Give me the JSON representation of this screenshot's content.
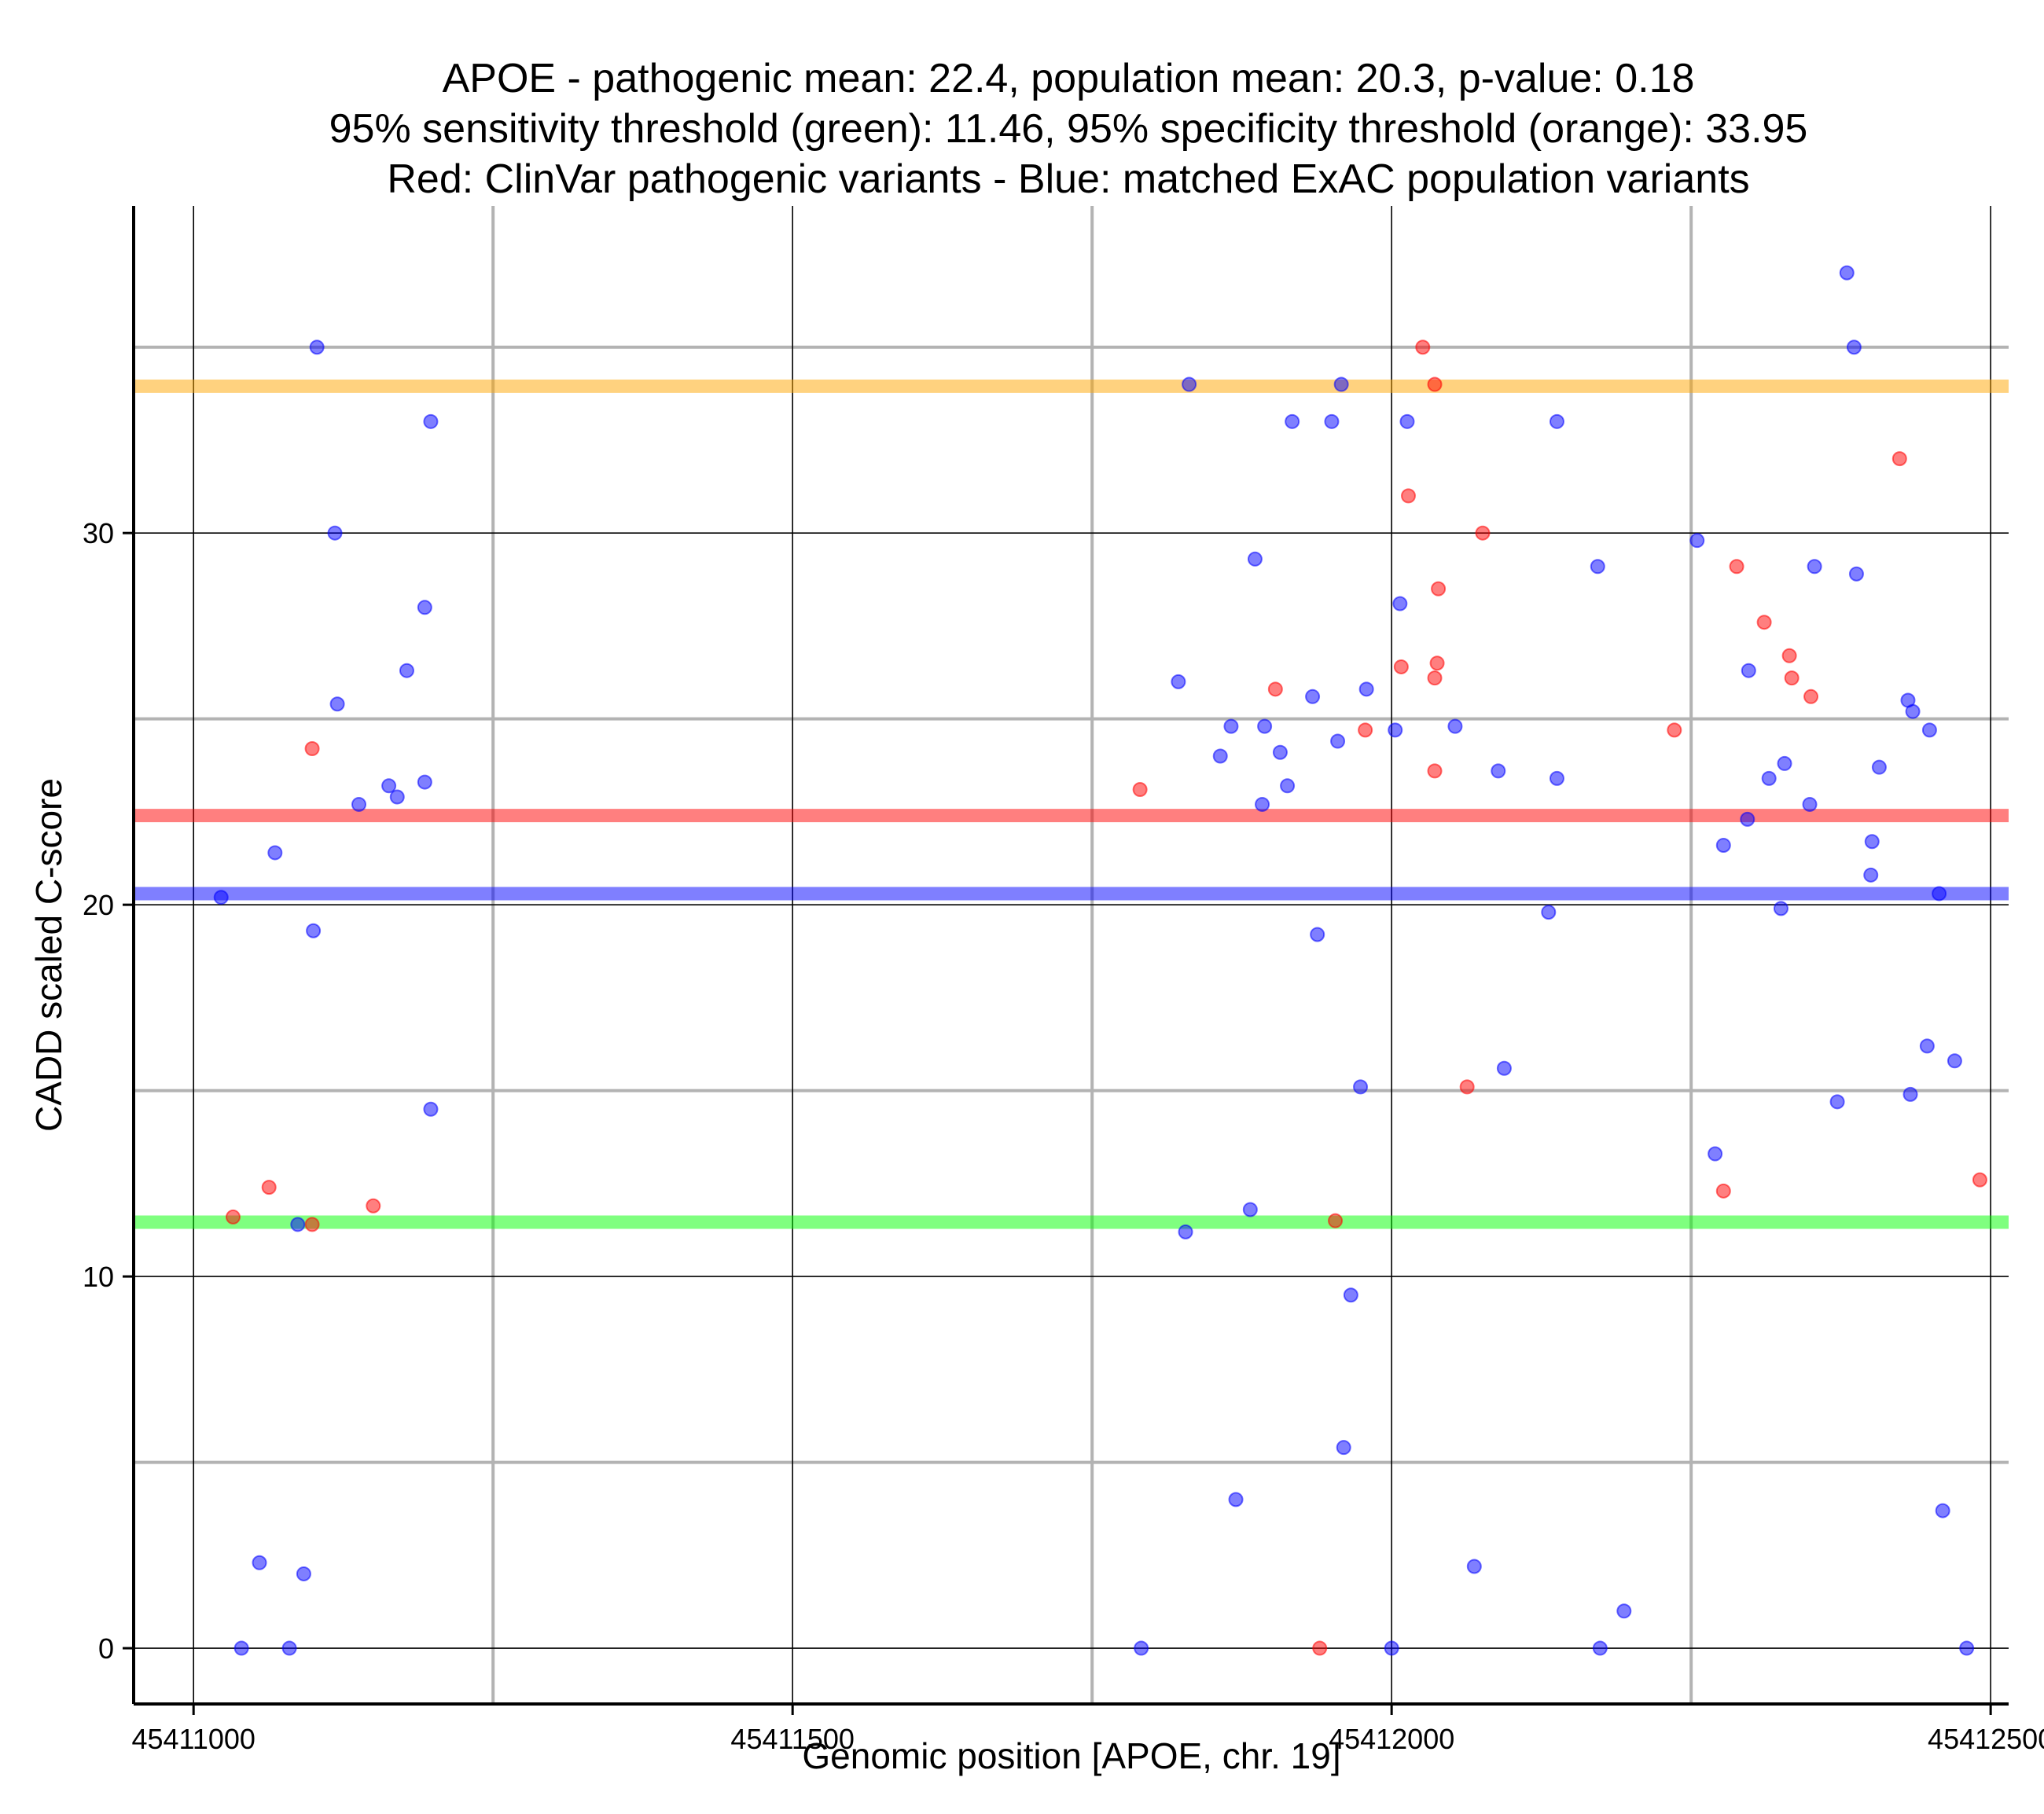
{
  "chart_data": {
    "type": "scatter",
    "title_lines": [
      "APOE - pathogenic mean: 22.4, population mean: 20.3, p-value: 0.18",
      "95% sensitivity threshold (green): 11.46, 95% specificity threshold (orange): 33.95",
      "Red: ClinVar pathogenic variants - Blue: matched ExAC population variants"
    ],
    "xlabel": "Genomic position [APOE, chr. 19]",
    "ylabel": "CADD scaled C-score",
    "xlim": [
      45410950,
      45412515
    ],
    "ylim": [
      -1.5,
      38.8
    ],
    "x_major_ticks": [
      45411000,
      45411500,
      45412000,
      45412500
    ],
    "x_minor_ticks": [
      45411250,
      45411750,
      45412250
    ],
    "x_tick_labels": [
      "45411000",
      "45411500",
      "45412000",
      "45412500"
    ],
    "y_major_ticks": [
      0,
      10,
      20,
      30
    ],
    "y_minor_ticks": [
      5,
      15,
      25,
      35
    ],
    "y_tick_labels": [
      "0",
      "10",
      "20",
      "30"
    ],
    "reference_lines": [
      {
        "name": "specificity-threshold",
        "value": 33.95,
        "color": "#ffa500"
      },
      {
        "name": "pathogenic-mean",
        "value": 22.4,
        "color": "#ff0000"
      },
      {
        "name": "population-mean",
        "value": 20.3,
        "color": "#0000ff"
      },
      {
        "name": "sensitivity-threshold",
        "value": 11.46,
        "color": "#00ff00"
      }
    ],
    "colors": {
      "pathogenic": "#ff0000",
      "population": "#0000ff"
    },
    "series": [
      {
        "name": "ClinVar pathogenic variants",
        "color": "#ff0000",
        "points": [
          [
            45411033,
            11.6
          ],
          [
            45411063,
            12.4
          ],
          [
            45411099,
            11.4
          ],
          [
            45411099,
            24.2
          ],
          [
            45411150,
            11.9
          ],
          [
            45411790,
            23.1
          ],
          [
            45411903,
            25.8
          ],
          [
            45411940,
            0.0
          ],
          [
            45411953,
            11.5
          ],
          [
            45411978,
            24.7
          ],
          [
            45412008,
            26.4
          ],
          [
            45412014,
            31.0
          ],
          [
            45412026,
            35.0
          ],
          [
            45412036,
            34.0
          ],
          [
            45412036,
            23.6
          ],
          [
            45412036,
            26.1
          ],
          [
            45412038,
            26.5
          ],
          [
            45412039,
            28.5
          ],
          [
            45412063,
            15.1
          ],
          [
            45412076,
            30.0
          ],
          [
            45412236,
            24.7
          ],
          [
            45412277,
            12.3
          ],
          [
            45412288,
            29.1
          ],
          [
            45412311,
            27.6
          ],
          [
            45412332,
            26.7
          ],
          [
            45412334,
            26.1
          ],
          [
            45412350,
            25.6
          ],
          [
            45412424,
            32.0
          ],
          [
            45412491,
            12.6
          ]
        ]
      },
      {
        "name": "matched ExAC population variants",
        "color": "#0000ff",
        "points": [
          [
            45411023,
            20.2
          ],
          [
            45411040,
            0.0
          ],
          [
            45411055,
            2.3
          ],
          [
            45411068,
            21.4
          ],
          [
            45411080,
            0.0
          ],
          [
            45411087,
            11.4
          ],
          [
            45411092,
            2.0
          ],
          [
            45411100,
            19.3
          ],
          [
            45411103,
            35.0
          ],
          [
            45411118,
            30.0
          ],
          [
            45411120,
            25.4
          ],
          [
            45411138,
            22.7
          ],
          [
            45411163,
            23.2
          ],
          [
            45411170,
            22.9
          ],
          [
            45411178,
            26.3
          ],
          [
            45411193,
            28.0
          ],
          [
            45411193,
            23.3
          ],
          [
            45411198,
            33.0
          ],
          [
            45411198,
            14.5
          ],
          [
            45411791,
            0.0
          ],
          [
            45411822,
            26.0
          ],
          [
            45411828,
            11.2
          ],
          [
            45411831,
            34.0
          ],
          [
            45411857,
            24.0
          ],
          [
            45411866,
            24.8
          ],
          [
            45411870,
            4.0
          ],
          [
            45411882,
            11.8
          ],
          [
            45411886,
            29.3
          ],
          [
            45411892,
            22.7
          ],
          [
            45411894,
            24.8
          ],
          [
            45411907,
            24.1
          ],
          [
            45411913,
            23.2
          ],
          [
            45411917,
            33.0
          ],
          [
            45411934,
            25.6
          ],
          [
            45411938,
            19.2
          ],
          [
            45411950,
            33.0
          ],
          [
            45411955,
            24.4
          ],
          [
            45411958,
            34.0
          ],
          [
            45411960,
            5.4
          ],
          [
            45411966,
            9.5
          ],
          [
            45411974,
            15.1
          ],
          [
            45411979,
            25.8
          ],
          [
            45412000,
            0.0
          ],
          [
            45412003,
            24.7
          ],
          [
            45412007,
            28.1
          ],
          [
            45412013,
            33.0
          ],
          [
            45412053,
            24.8
          ],
          [
            45412069,
            2.2
          ],
          [
            45412089,
            23.6
          ],
          [
            45412094,
            15.6
          ],
          [
            45412131,
            19.8
          ],
          [
            45412138,
            23.4
          ],
          [
            45412138,
            33.0
          ],
          [
            45412172,
            29.1
          ],
          [
            45412174,
            0.0
          ],
          [
            45412194,
            1.0
          ],
          [
            45412255,
            29.8
          ],
          [
            45412270,
            13.3
          ],
          [
            45412277,
            21.6
          ],
          [
            45412297,
            22.3
          ],
          [
            45412298,
            26.3
          ],
          [
            45412315,
            23.4
          ],
          [
            45412325,
            19.9
          ],
          [
            45412328,
            23.8
          ],
          [
            45412349,
            22.7
          ],
          [
            45412353,
            29.1
          ],
          [
            45412372,
            14.7
          ],
          [
            45412380,
            37.0
          ],
          [
            45412386,
            35.0
          ],
          [
            45412388,
            28.9
          ],
          [
            45412407,
            23.7
          ],
          [
            45412401,
            21.7
          ],
          [
            45412400,
            20.8
          ],
          [
            45412431,
            25.5
          ],
          [
            45412435,
            25.2
          ],
          [
            45412433,
            14.9
          ],
          [
            45412447,
            16.2
          ],
          [
            45412449,
            24.7
          ],
          [
            45412457,
            20.3
          ],
          [
            45412460,
            3.7
          ],
          [
            45412470,
            15.8
          ],
          [
            45412480,
            0.0
          ]
        ]
      }
    ]
  }
}
